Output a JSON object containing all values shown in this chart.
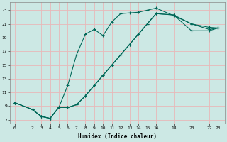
{
  "xlabel": "Humidex (Indice chaleur)",
  "bg_color": "#cce8e4",
  "grid_color": "#e8b8b8",
  "line_color": "#006858",
  "xlim": [
    -0.5,
    23.8
  ],
  "ylim": [
    6.5,
    24.2
  ],
  "xtick_labels": [
    "0",
    "2",
    "3",
    "4",
    "5",
    "6",
    "7",
    "8",
    "9",
    "10",
    "11",
    "12",
    "13",
    "14",
    "15",
    "16",
    "18",
    "20",
    "22",
    "23"
  ],
  "xtick_pos": [
    0,
    2,
    3,
    4,
    5,
    6,
    7,
    8,
    9,
    10,
    11,
    12,
    13,
    14,
    15,
    16,
    18,
    20,
    22,
    23
  ],
  "ytick_labels": [
    "7",
    "9",
    "11",
    "13",
    "15",
    "17",
    "19",
    "21",
    "23"
  ],
  "ytick_pos": [
    7,
    9,
    11,
    13,
    15,
    17,
    19,
    21,
    23
  ],
  "line1_x": [
    0,
    2,
    3,
    4,
    5,
    6,
    7,
    8,
    9,
    10,
    11,
    12,
    13,
    14,
    15,
    16,
    18,
    20,
    22,
    23
  ],
  "line1_y": [
    9.5,
    8.5,
    7.5,
    7.2,
    8.8,
    12,
    16.5,
    19.5,
    20.2,
    19.3,
    21.3,
    22.5,
    22.6,
    22.7,
    23.0,
    23.3,
    22.2,
    21.0,
    20.5,
    20.4
  ],
  "line2_x": [
    0,
    2,
    3,
    4,
    5,
    6,
    7,
    8,
    9,
    10,
    11,
    12,
    13,
    14,
    15,
    16,
    18,
    20,
    22,
    23
  ],
  "line2_y": [
    9.5,
    8.5,
    7.5,
    7.2,
    8.8,
    8.8,
    9.2,
    10.5,
    12.0,
    13.5,
    15.0,
    16.5,
    18.0,
    19.5,
    21.0,
    22.5,
    22.3,
    21.0,
    20.2,
    20.4
  ],
  "line3_x": [
    0,
    2,
    3,
    4,
    5,
    6,
    7,
    8,
    9,
    10,
    11,
    12,
    13,
    14,
    15,
    16,
    18,
    20,
    22,
    23
  ],
  "line3_y": [
    9.5,
    8.5,
    7.5,
    7.2,
    8.8,
    8.8,
    9.2,
    10.5,
    12.0,
    13.5,
    15.0,
    16.5,
    18.0,
    19.5,
    21.0,
    22.5,
    22.3,
    20.0,
    20.0,
    20.4
  ]
}
